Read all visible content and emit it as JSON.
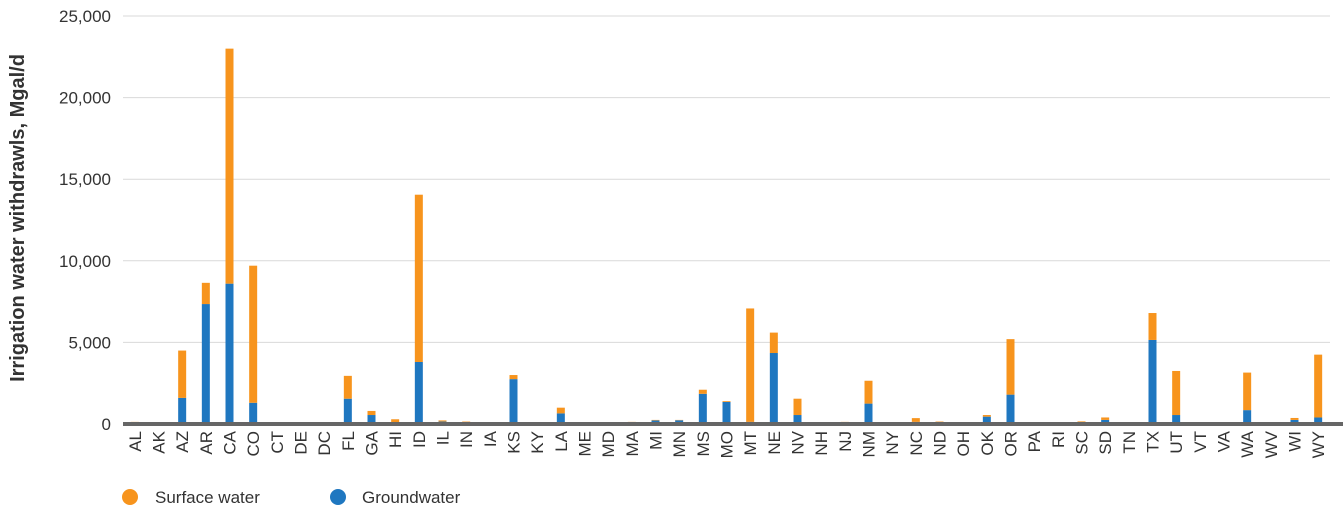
{
  "chart_data": {
    "type": "bar",
    "stacked": true,
    "ylabel": "Irrigation water withdrawls, Mgal/d",
    "xlabel": "",
    "ylim": [
      0,
      25000
    ],
    "yticks": [
      0,
      5000,
      10000,
      15000,
      20000,
      25000
    ],
    "ytick_labels": [
      "0",
      "5,000",
      "10,000",
      "15,000",
      "20,000",
      "25,000"
    ],
    "grid": true,
    "legend_position": "bottom-left",
    "categories": [
      "AL",
      "AK",
      "AZ",
      "AR",
      "CA",
      "CO",
      "CT",
      "DE",
      "DC",
      "FL",
      "GA",
      "HI",
      "ID",
      "IL",
      "IN",
      "IA",
      "KS",
      "KY",
      "LA",
      "ME",
      "MD",
      "MA",
      "MI",
      "MN",
      "MS",
      "MO",
      "MT",
      "NE",
      "NV",
      "NH",
      "NJ",
      "NM",
      "NY",
      "NC",
      "ND",
      "OH",
      "OK",
      "OR",
      "PA",
      "RI",
      "SC",
      "SD",
      "TN",
      "TX",
      "UT",
      "VT",
      "VA",
      "WA",
      "WV",
      "WI",
      "WY"
    ],
    "series": [
      {
        "name": "Groundwater",
        "color": "#1f77c0",
        "values": [
          80,
          0,
          1600,
          7350,
          8600,
          1300,
          0,
          100,
          0,
          1550,
          550,
          120,
          3800,
          150,
          120,
          40,
          2750,
          0,
          650,
          0,
          100,
          100,
          220,
          230,
          1850,
          1350,
          130,
          4350,
          550,
          0,
          100,
          1250,
          40,
          130,
          120,
          40,
          450,
          1800,
          40,
          0,
          50,
          250,
          60,
          5150,
          550,
          0,
          50,
          850,
          0,
          250,
          400
        ]
      },
      {
        "name": "Surface water",
        "color": "#f7941d",
        "values": [
          50,
          0,
          2900,
          1300,
          14400,
          8400,
          0,
          0,
          0,
          1400,
          250,
          170,
          10250,
          70,
          30,
          60,
          250,
          0,
          350,
          0,
          0,
          30,
          30,
          20,
          250,
          50,
          6950,
          1250,
          1000,
          0,
          30,
          1400,
          60,
          230,
          30,
          60,
          100,
          3400,
          60,
          0,
          110,
          150,
          60,
          1650,
          2700,
          0,
          50,
          2300,
          0,
          120,
          3850
        ]
      }
    ]
  }
}
